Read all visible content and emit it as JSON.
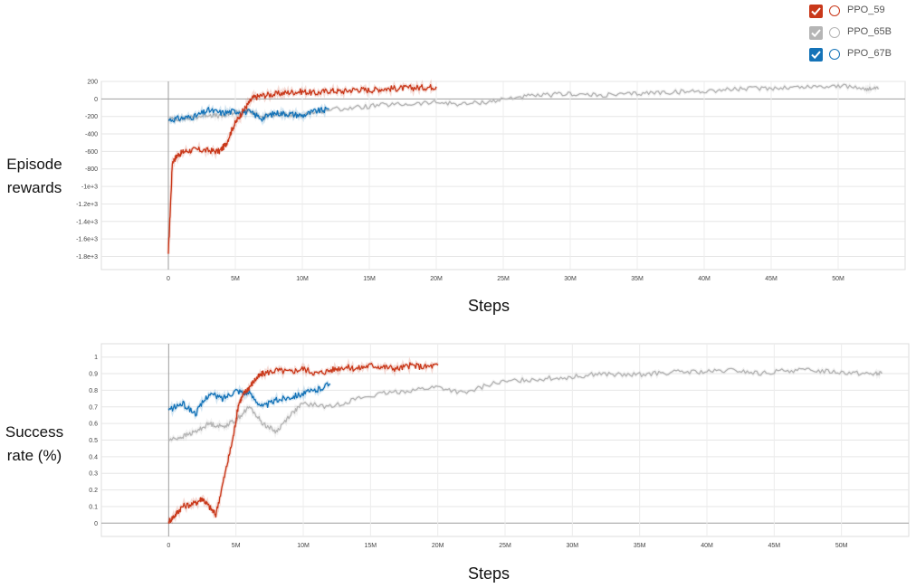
{
  "legend": {
    "items": [
      {
        "label": "PPO_59",
        "color": "#c9381a",
        "checked": true
      },
      {
        "label": "PPO_65B",
        "color": "#b5b5b5",
        "checked": true
      },
      {
        "label": "PPO_67B",
        "color": "#1473b8",
        "checked": true
      }
    ]
  },
  "chart_data": [
    {
      "type": "line",
      "ylabel_lines": [
        "Episode",
        "rewards"
      ],
      "xlabel": "Steps",
      "x_ticks": [
        "0",
        "5M",
        "10M",
        "15M",
        "20M",
        "25M",
        "30M",
        "35M",
        "40M",
        "45M",
        "50M"
      ],
      "y_ticks": [
        "200",
        "0",
        "-200",
        "-400",
        "-600",
        "-800",
        "-1e+3",
        "-1.2e+3",
        "-1.4e+3",
        "-1.6e+3",
        "-1.8e+3"
      ],
      "y_tick_values": [
        200,
        0,
        -200,
        -400,
        -600,
        -800,
        -1000,
        -1200,
        -1400,
        -1600,
        -1800
      ],
      "xlim": [
        -5000000,
        55000000
      ],
      "ylim": [
        -1950000,
        200
      ],
      "ylim_display": [
        -1950,
        200
      ],
      "grid": true,
      "series": [
        {
          "name": "PPO_59",
          "color": "#c9381a",
          "x": [
            0,
            300000,
            700000,
            1200000,
            2000000,
            3000000,
            3800000,
            4300000,
            4800000,
            5300000,
            5800000,
            6300000,
            7000000,
            8000000,
            9000000,
            10000000,
            11000000,
            12000000,
            13000000,
            14000000,
            15000000,
            16000000,
            17000000,
            18000000,
            19000000,
            20000000
          ],
          "y": [
            -1770,
            -720,
            -640,
            -600,
            -580,
            -590,
            -600,
            -520,
            -330,
            -200,
            -90,
            10,
            40,
            55,
            75,
            85,
            65,
            95,
            85,
            110,
            100,
            115,
            120,
            125,
            130,
            140
          ]
        },
        {
          "name": "PPO_65B",
          "color": "#b5b5b5",
          "x": [
            0,
            1000000,
            2000000,
            3000000,
            4000000,
            5000000,
            6000000,
            7000000,
            8000000,
            9000000,
            10000000,
            12000000,
            14000000,
            16000000,
            18000000,
            20000000,
            22000000,
            24000000,
            26000000,
            28000000,
            30000000,
            32000000,
            34000000,
            36000000,
            38000000,
            40000000,
            42000000,
            44000000,
            46000000,
            48000000,
            50000000,
            52000000,
            53000000
          ],
          "y": [
            -230,
            -230,
            -210,
            -180,
            -200,
            -150,
            -140,
            -210,
            -170,
            -190,
            -180,
            -120,
            -100,
            -70,
            -60,
            -40,
            -60,
            -30,
            20,
            40,
            60,
            40,
            50,
            70,
            80,
            90,
            110,
            120,
            130,
            140,
            150,
            120,
            110
          ]
        },
        {
          "name": "PPO_67B",
          "color": "#1473b8",
          "x": [
            0,
            1000000,
            2000000,
            3000000,
            4000000,
            5000000,
            6000000,
            7000000,
            8000000,
            9000000,
            10000000,
            11000000,
            12000000
          ],
          "y": [
            -240,
            -220,
            -200,
            -130,
            -160,
            -140,
            -150,
            -220,
            -160,
            -170,
            -190,
            -140,
            -120
          ]
        }
      ]
    },
    {
      "type": "line",
      "ylabel_lines": [
        "Success",
        "rate (%)"
      ],
      "xlabel": "Steps",
      "x_ticks": [
        "0",
        "5M",
        "10M",
        "15M",
        "20M",
        "25M",
        "30M",
        "35M",
        "40M",
        "45M",
        "50M"
      ],
      "y_ticks": [
        "1",
        "0.9",
        "0.8",
        "0.7",
        "0.6",
        "0.5",
        "0.4",
        "0.3",
        "0.2",
        "0.1",
        "0"
      ],
      "y_tick_values": [
        1,
        0.9,
        0.8,
        0.7,
        0.6,
        0.5,
        0.4,
        0.3,
        0.2,
        0.1,
        0
      ],
      "xlim": [
        -5000000,
        55000000
      ],
      "ylim": [
        -0.08,
        1.08
      ],
      "grid": true,
      "series": [
        {
          "name": "PPO_59",
          "color": "#c9381a",
          "x": [
            0,
            500000,
            1000000,
            2000000,
            2500000,
            3000000,
            3500000,
            4200000,
            4800000,
            5200000,
            5600000,
            6000000,
            6500000,
            7000000,
            8000000,
            9000000,
            10000000,
            11000000,
            12000000,
            13000000,
            14000000,
            15000000,
            16000000,
            17000000,
            18000000,
            19000000,
            20000000
          ],
          "y": [
            0.01,
            0.05,
            0.1,
            0.12,
            0.15,
            0.1,
            0.05,
            0.3,
            0.52,
            0.72,
            0.78,
            0.82,
            0.87,
            0.9,
            0.92,
            0.91,
            0.93,
            0.9,
            0.92,
            0.94,
            0.93,
            0.95,
            0.94,
            0.93,
            0.95,
            0.94,
            0.95
          ]
        },
        {
          "name": "PPO_65B",
          "color": "#b5b5b5",
          "x": [
            0,
            1000000,
            2000000,
            3000000,
            4000000,
            5000000,
            6000000,
            7000000,
            8000000,
            9000000,
            10000000,
            12000000,
            14000000,
            16000000,
            18000000,
            20000000,
            22000000,
            24000000,
            26000000,
            28000000,
            30000000,
            32000000,
            34000000,
            36000000,
            38000000,
            40000000,
            42000000,
            44000000,
            46000000,
            48000000,
            50000000,
            52000000,
            53000000
          ],
          "y": [
            0.5,
            0.52,
            0.55,
            0.6,
            0.58,
            0.62,
            0.7,
            0.6,
            0.55,
            0.65,
            0.72,
            0.7,
            0.75,
            0.78,
            0.8,
            0.82,
            0.78,
            0.84,
            0.86,
            0.87,
            0.88,
            0.9,
            0.89,
            0.9,
            0.91,
            0.91,
            0.92,
            0.9,
            0.92,
            0.92,
            0.91,
            0.9,
            0.9
          ]
        },
        {
          "name": "PPO_67B",
          "color": "#1473b8",
          "x": [
            0,
            1000000,
            2000000,
            3000000,
            4000000,
            5000000,
            6000000,
            7000000,
            8000000,
            9000000,
            10000000,
            11000000,
            12000000
          ],
          "y": [
            0.68,
            0.72,
            0.66,
            0.78,
            0.75,
            0.8,
            0.78,
            0.7,
            0.74,
            0.76,
            0.78,
            0.8,
            0.84
          ]
        }
      ]
    }
  ]
}
